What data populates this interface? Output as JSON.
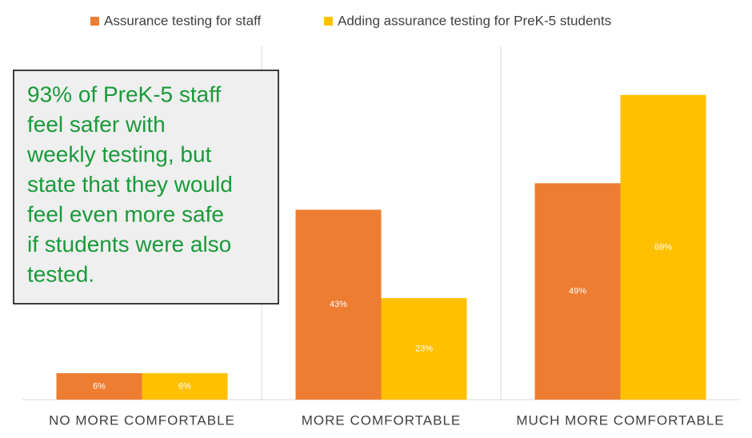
{
  "chart_data": {
    "type": "bar",
    "categories": [
      "NO MORE COMFORTABLE",
      "MORE COMFORTABLE",
      "MUCH MORE COMFORTABLE"
    ],
    "series": [
      {
        "name": "Assurance testing for staff",
        "color": "#ed7d31",
        "values": [
          6,
          43,
          49
        ],
        "value_labels": [
          "6%",
          "43%",
          "49%"
        ]
      },
      {
        "name": "Adding assurance testing for PreK-5 students",
        "color": "#ffc000",
        "values": [
          6,
          23,
          69
        ],
        "value_labels": [
          "6%",
          "23%",
          "69%"
        ]
      }
    ],
    "ylim": [
      0,
      80
    ],
    "legend": "top",
    "annotation": {
      "lines": [
        "93% of PreK-5 staff",
        "feel safer with",
        "weekly testing, but",
        "state that they would",
        "feel even more safe",
        "if students were also",
        "tested."
      ],
      "color": "#1a9a3a"
    }
  }
}
